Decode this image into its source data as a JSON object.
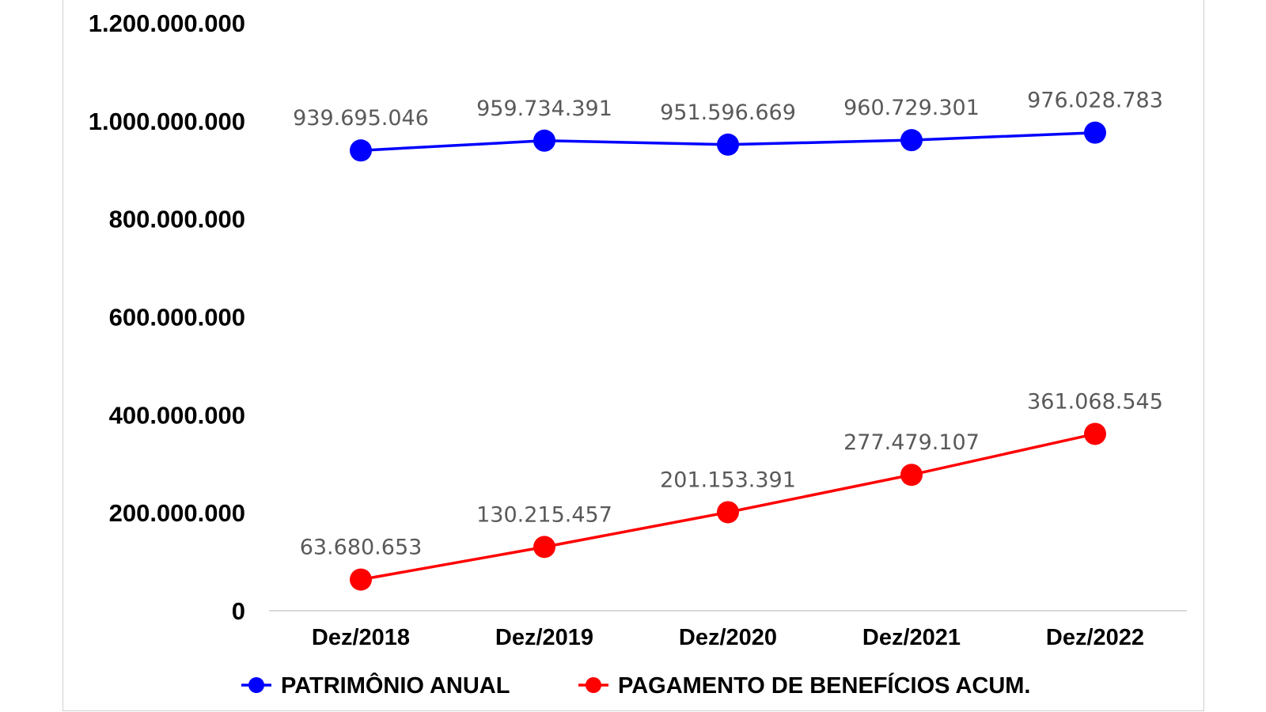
{
  "chart_data": {
    "type": "line",
    "categories": [
      "Dez/2018",
      "Dez/2019",
      "Dez/2020",
      "Dez/2021",
      "Dez/2022"
    ],
    "series": [
      {
        "name": "PATRIMÔNIO ANUAL",
        "color": "#0000ff",
        "values": [
          939695046,
          959734391,
          951596669,
          960729301,
          976028783
        ],
        "labels": [
          "939.695.046",
          "959.734.391",
          "951.596.669",
          "960.729.301",
          "976.028.783"
        ]
      },
      {
        "name": "PAGAMENTO DE BENEFÍCIOS ACUM.",
        "color": "#ff0000",
        "values": [
          63680653,
          130215457,
          201153391,
          277479107,
          361068545
        ],
        "labels": [
          "63.680.653",
          "130.215.457",
          "201.153.391",
          "277.479.107",
          "361.068.545"
        ]
      }
    ],
    "ylim": [
      0,
      1200000000
    ],
    "yticks": [
      0,
      200000000,
      400000000,
      600000000,
      800000000,
      1000000000,
      1200000000
    ],
    "ytick_labels": [
      "0",
      "200.000.000",
      "400.000.000",
      "600.000.000",
      "800.000.000",
      "1.000.000.000",
      "1.200.000.000"
    ],
    "grid": false,
    "legend_position": "bottom"
  }
}
